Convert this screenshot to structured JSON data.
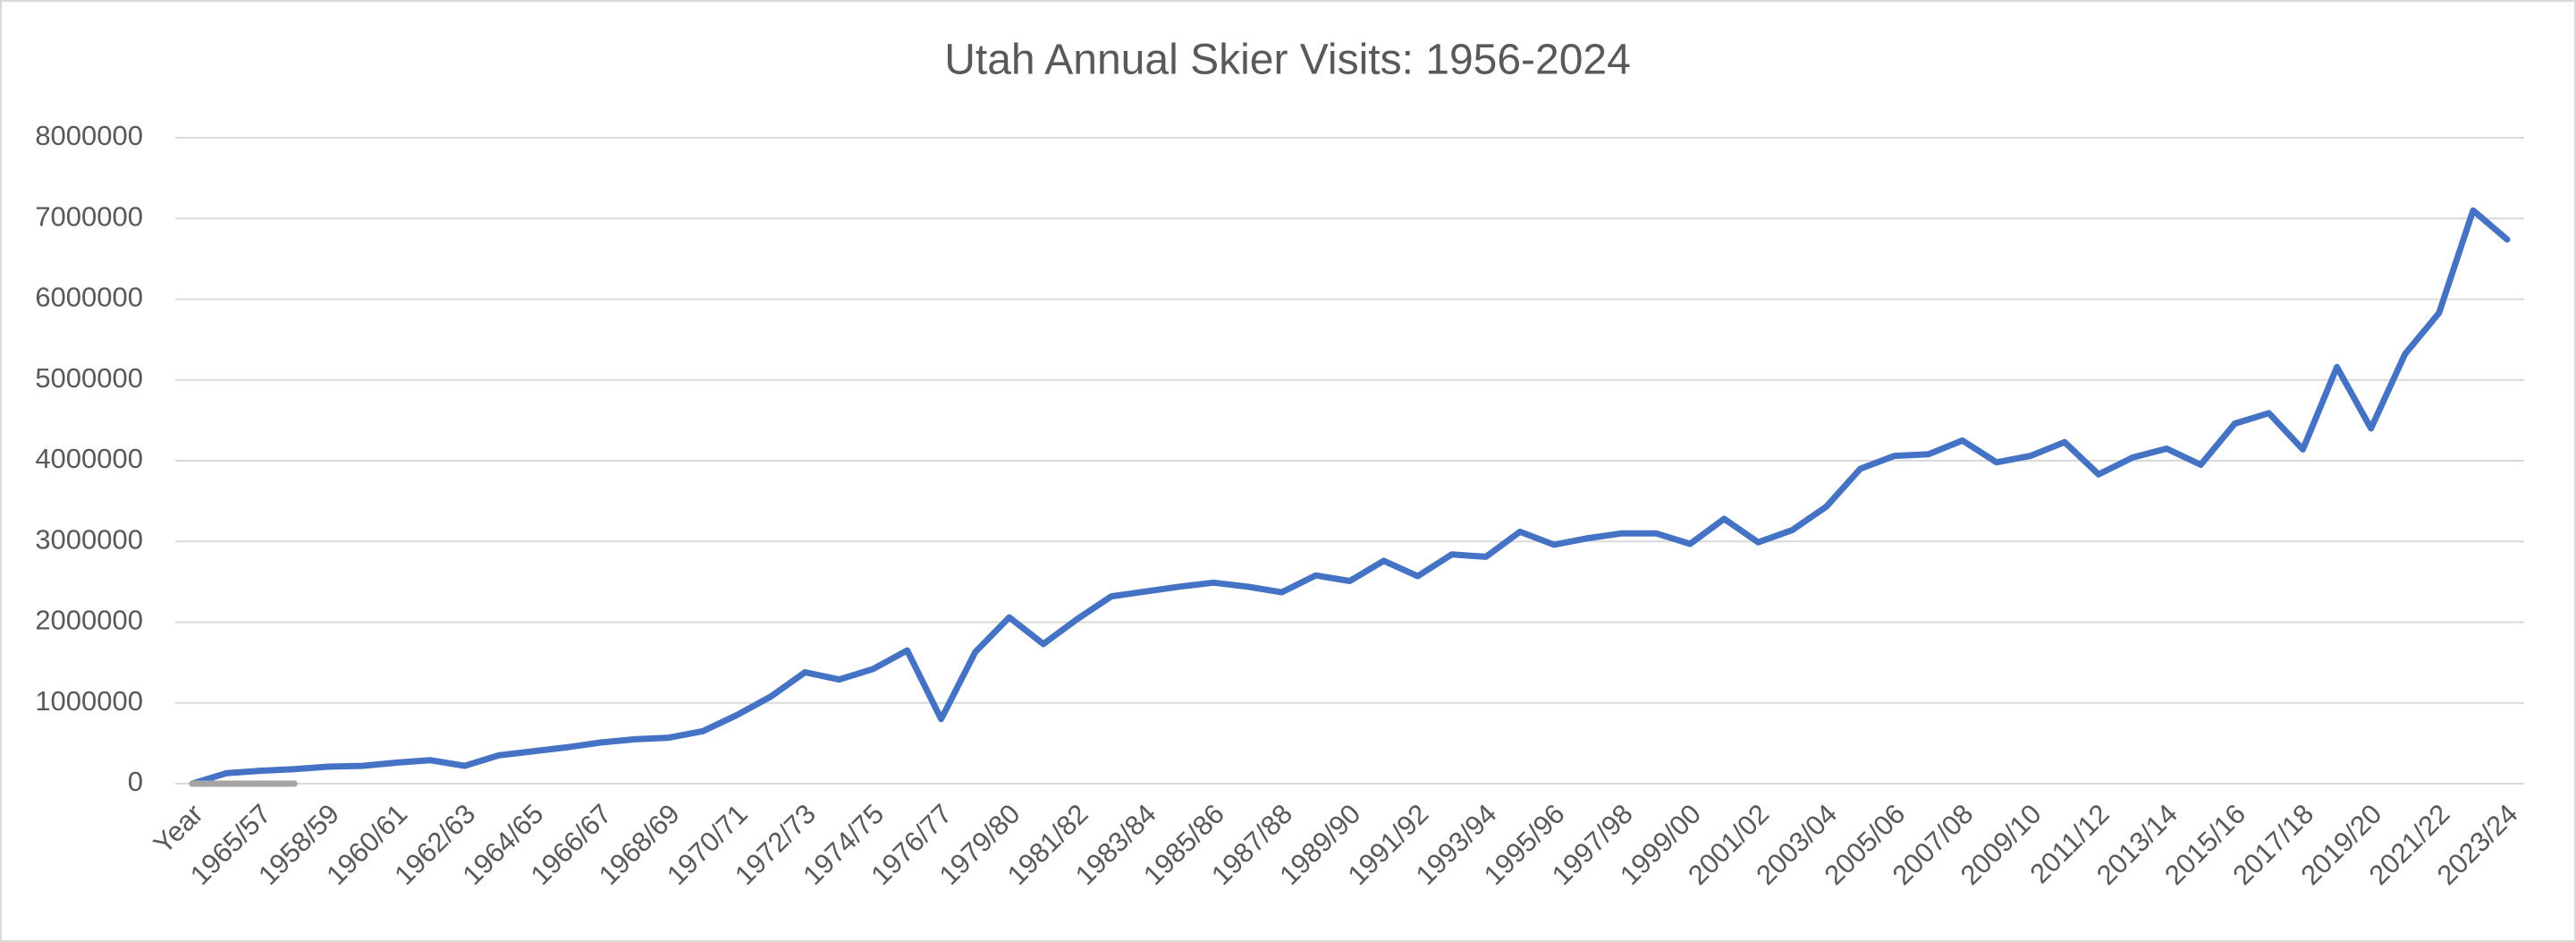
{
  "chart_data": {
    "type": "line",
    "title": "Utah Annual Skier Visits: 1956-2024",
    "categories": [
      "Year",
      null,
      "1965/57",
      null,
      "1958/59",
      null,
      "1960/61",
      null,
      "1962/63",
      null,
      "1964/65",
      null,
      "1966/67",
      null,
      "1968/69",
      null,
      "1970/71",
      null,
      "1972/73",
      null,
      "1974/75",
      null,
      "1976/77",
      null,
      "1979/80",
      null,
      "1981/82",
      null,
      "1983/84",
      null,
      "1985/86",
      null,
      "1987/88",
      null,
      "1989/90",
      null,
      "1991/92",
      null,
      "1993/94",
      null,
      "1995/96",
      null,
      "1997/98",
      null,
      "1999/00",
      null,
      "2001/02",
      null,
      "2003/04",
      null,
      "2005/06",
      null,
      "2007/08",
      null,
      "2009/10",
      null,
      "2011/12",
      null,
      "2013/14",
      null,
      "2015/16",
      null,
      "2017/18",
      null,
      "2019/20",
      null,
      "2021/22",
      null,
      "2023/24"
    ],
    "series": [
      {
        "color": "#4472c4",
        "values": [
          0,
          130000,
          160000,
          180000,
          210000,
          220000,
          260000,
          290000,
          220000,
          350000,
          400000,
          450000,
          510000,
          550000,
          570000,
          650000,
          850000,
          1080000,
          1380000,
          1290000,
          1420000,
          1650000,
          800000,
          1630000,
          2060000,
          1730000,
          2040000,
          2320000,
          2380000,
          2440000,
          2490000,
          2440000,
          2370000,
          2580000,
          2510000,
          2760000,
          2570000,
          2840000,
          2810000,
          3120000,
          2960000,
          3040000,
          3100000,
          3100000,
          2970000,
          3280000,
          2990000,
          3140000,
          3430000,
          3900000,
          4060000,
          4080000,
          4250000,
          3980000,
          4060000,
          4230000,
          3830000,
          4040000,
          4150000,
          3950000,
          4460000,
          4590000,
          4140000,
          5160000,
          4400000,
          5320000,
          5830000,
          7100000,
          6740000
        ]
      },
      {
        "color": "#a5a5a5",
        "values": [
          0,
          0,
          0,
          0,
          null,
          null,
          null,
          null,
          null,
          null,
          null,
          null,
          null,
          null,
          null,
          null,
          null,
          null,
          null,
          null,
          null,
          null,
          null,
          null,
          null,
          null,
          null,
          null,
          null,
          null,
          null,
          null,
          null,
          null,
          null,
          null,
          null,
          null,
          null,
          null,
          null,
          null,
          null,
          null,
          null,
          null,
          null,
          null,
          null,
          null,
          null,
          null,
          null,
          null,
          null,
          null,
          null,
          null,
          null,
          null,
          null,
          null,
          null,
          null,
          null,
          null,
          null,
          null,
          null
        ]
      }
    ],
    "ylim": [
      0,
      8000000
    ],
    "yticks": [
      0,
      1000000,
      2000000,
      3000000,
      4000000,
      5000000,
      6000000,
      7000000,
      8000000
    ],
    "grid": true
  }
}
